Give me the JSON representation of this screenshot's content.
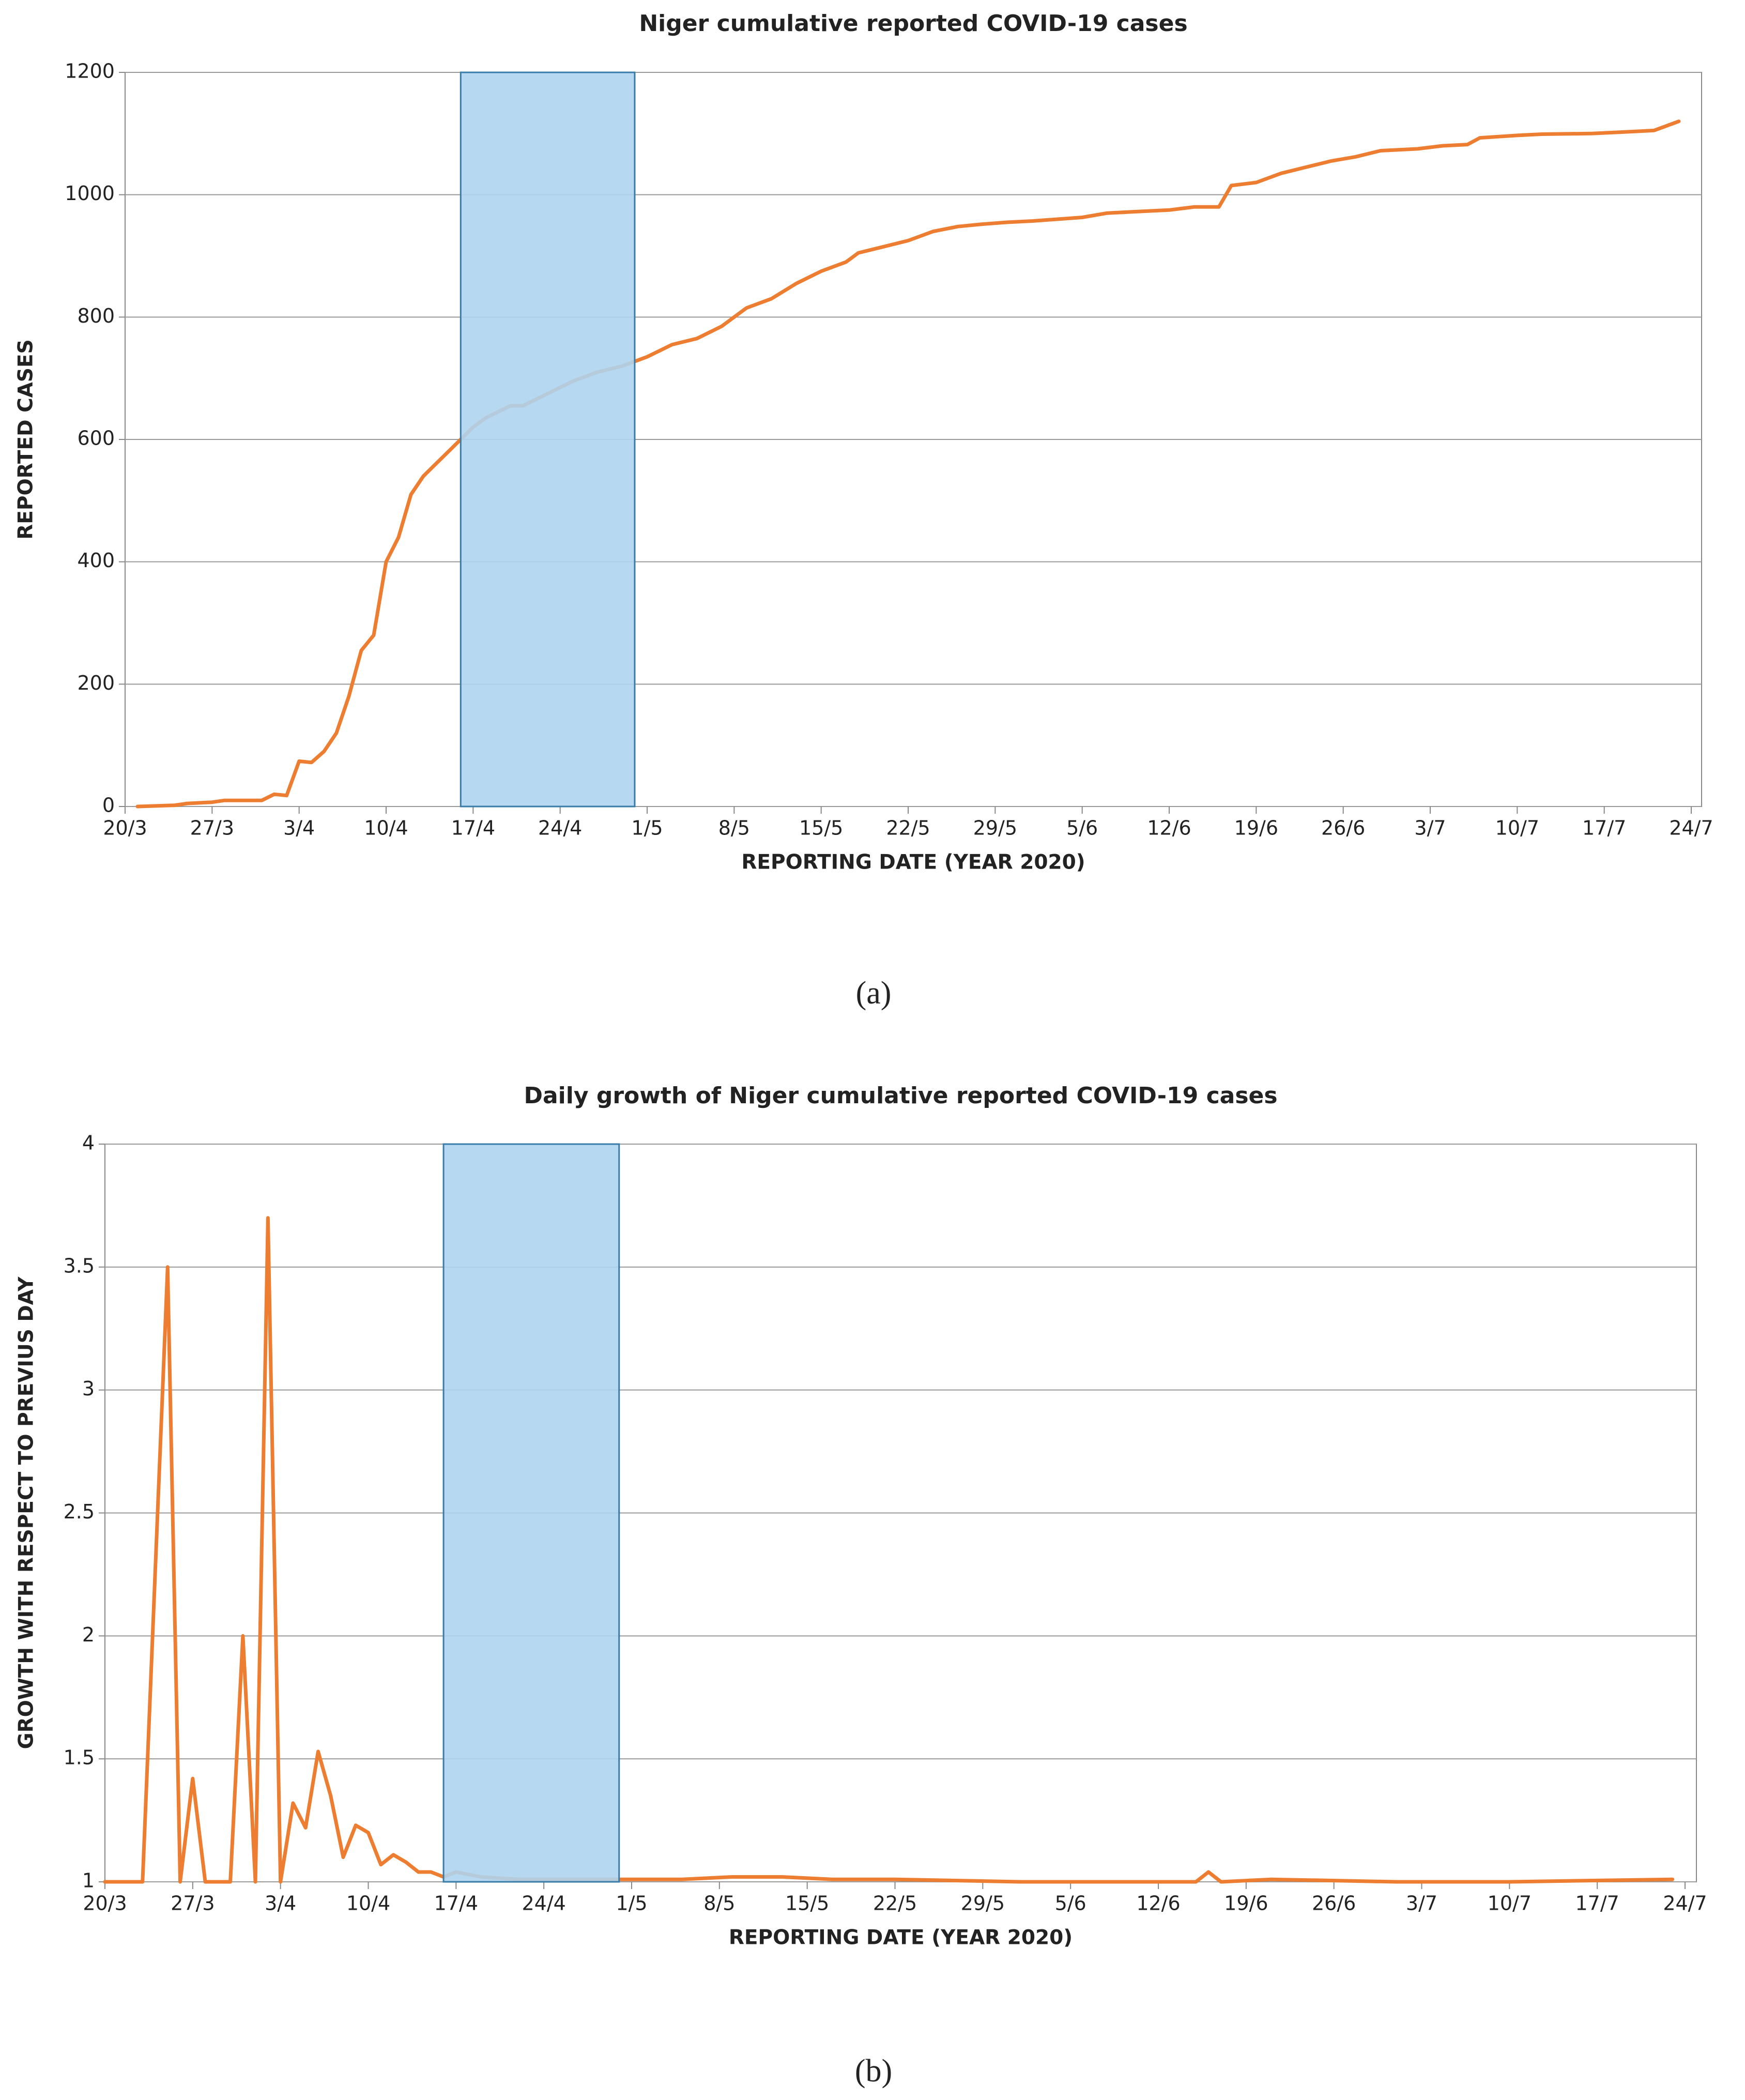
{
  "chart_data": [
    {
      "type": "line",
      "title": "Niger cumulative reported COVID-19 cases",
      "x_label": "REPORTING DATE (YEAR 2020)",
      "y_label": "REPORTED CASES",
      "caption": "(a)",
      "x": [
        "21/3",
        "24/3",
        "25/3",
        "27/3",
        "28/3",
        "30/3",
        "31/3",
        "1/4",
        "2/4",
        "3/4",
        "4/4",
        "5/4",
        "6/4",
        "7/4",
        "8/4",
        "9/4",
        "10/4",
        "11/4",
        "12/4",
        "13/4",
        "14/4",
        "15/4",
        "16/4",
        "17/4",
        "18/4",
        "20/4",
        "21/4",
        "23/4",
        "24/4",
        "25/4",
        "27/4",
        "29/4",
        "1/5",
        "3/5",
        "5/5",
        "7/5",
        "9/5",
        "11/5",
        "13/5",
        "15/5",
        "17/5",
        "18/5",
        "20/5",
        "22/5",
        "24/5",
        "26/5",
        "28/5",
        "30/5",
        "1/6",
        "3/6",
        "5/6",
        "7/6",
        "9/6",
        "12/6",
        "14/6",
        "16/6",
        "17/6",
        "19/6",
        "21/6",
        "23/6",
        "25/6",
        "27/6",
        "29/6",
        "2/7",
        "4/7",
        "6/7",
        "7/7",
        "10/7",
        "12/7",
        "16/7",
        "18/7",
        "21/7",
        "23/7"
      ],
      "series": [
        {
          "color": "#ed7d31",
          "values": [
            0,
            2,
            5,
            7,
            10,
            10,
            10,
            20,
            18,
            74,
            72,
            90,
            120,
            180,
            255,
            280,
            400,
            440,
            510,
            540,
            560,
            580,
            600,
            620,
            635,
            655,
            655,
            675,
            685,
            695,
            710,
            720,
            735,
            755,
            765,
            785,
            815,
            830,
            855,
            875,
            890,
            905,
            915,
            925,
            940,
            948,
            952,
            955,
            957,
            960,
            963,
            970,
            972,
            975,
            980,
            980,
            1015,
            1020,
            1035,
            1045,
            1055,
            1062,
            1072,
            1075,
            1080,
            1082,
            1093,
            1097,
            1099,
            1100,
            1102,
            1105,
            1120
          ]
        }
      ],
      "xlim": [
        "20/3",
        "24/7"
      ],
      "xticks": [
        "20/3",
        "27/3",
        "3/4",
        "10/4",
        "17/4",
        "24/4",
        "1/5",
        "8/5",
        "15/5",
        "22/5",
        "29/5",
        "5/6",
        "12/6",
        "19/6",
        "26/6",
        "3/7",
        "10/7",
        "17/7",
        "24/7"
      ],
      "ylim": [
        0,
        1200
      ],
      "yticks": [
        0,
        200,
        400,
        600,
        800,
        1000,
        1200
      ],
      "grid": true,
      "highlight": {
        "from": "16/4",
        "to": "30/4",
        "color": "#aed4ee"
      }
    },
    {
      "type": "line",
      "title": "Daily growth of Niger cumulative reported COVID-19 cases",
      "x_label": "REPORTING DATE (YEAR 2020)",
      "y_label": "GROWTH WITH RESPECT TO PREVIUS DAY",
      "caption": "(b)",
      "x": [
        "20/3",
        "23/3",
        "25/3",
        "26/3",
        "27/3",
        "28/3",
        "30/3",
        "31/3",
        "1/4",
        "2/4",
        "3/4",
        "4/4",
        "5/4",
        "6/4",
        "7/4",
        "8/4",
        "9/4",
        "10/4",
        "11/4",
        "12/4",
        "13/4",
        "14/4",
        "15/4",
        "16/4",
        "17/4",
        "19/4",
        "22/4",
        "25/4",
        "28/4",
        "1/5",
        "5/5",
        "9/5",
        "13/5",
        "17/5",
        "22/5",
        "1/6",
        "10/6",
        "15/6",
        "16/6",
        "17/6",
        "21/6",
        "1/7",
        "10/7",
        "23/7"
      ],
      "series": [
        {
          "color": "#ed7d31",
          "values": [
            1,
            1,
            3.5,
            1,
            1.42,
            1,
            1,
            2.0,
            1,
            3.7,
            1,
            1.32,
            1.22,
            1.53,
            1.35,
            1.1,
            1.23,
            1.2,
            1.07,
            1.11,
            1.08,
            1.04,
            1.04,
            1.02,
            1.04,
            1.02,
            1.01,
            1.01,
            1.01,
            1.01,
            1.01,
            1.02,
            1.02,
            1.01,
            1.01,
            1.0,
            1.0,
            1.0,
            1.04,
            1.0,
            1.01,
            1.0,
            1.0,
            1.01
          ]
        }
      ],
      "xlim": [
        "20/3",
        "24/7"
      ],
      "xticks": [
        "20/3",
        "27/3",
        "3/4",
        "10/4",
        "17/4",
        "24/4",
        "1/5",
        "8/5",
        "15/5",
        "22/5",
        "29/5",
        "5/6",
        "12/6",
        "19/6",
        "26/6",
        "3/7",
        "10/7",
        "17/7",
        "24/7"
      ],
      "ylim": [
        1,
        4
      ],
      "yticks": [
        1,
        1.5,
        2,
        2.5,
        3,
        3.5,
        4
      ],
      "grid": true,
      "highlight": {
        "from": "16/4",
        "to": "30/4",
        "color": "#aed4ee"
      }
    }
  ]
}
